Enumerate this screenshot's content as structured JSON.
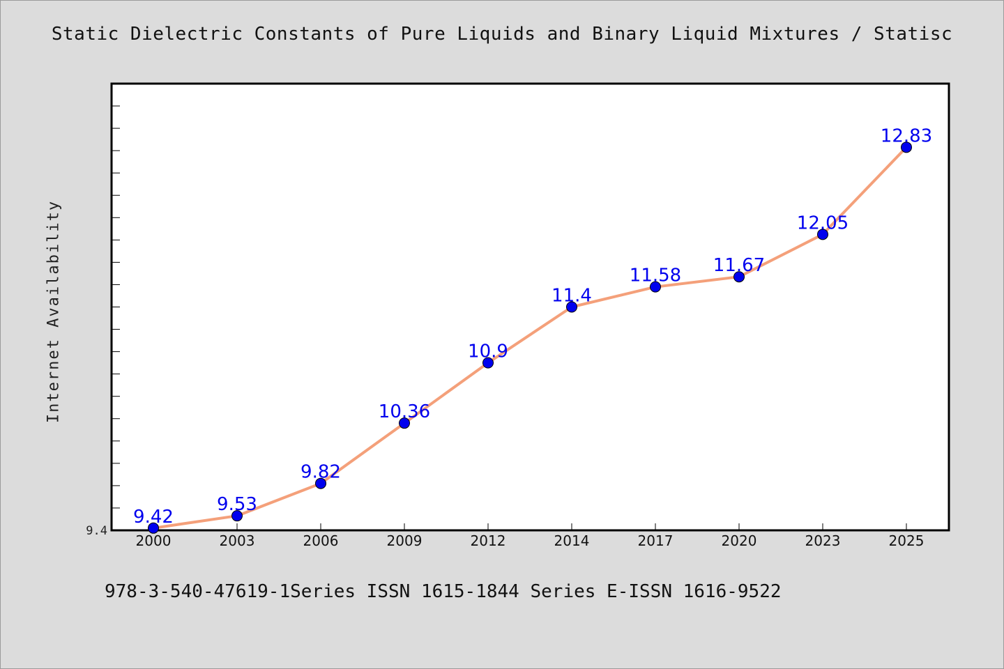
{
  "title": "Static Dielectric Constants of Pure Liquids and Binary Liquid Mixtures / Statisc",
  "footer": "978-3-540-47619-1Series ISSN 1615-1844 Series E-ISSN 1616-9522",
  "colors": {
    "line": "#f4a07a",
    "marker": "#0000ee",
    "label": "#0000ee",
    "background": "#dcdcdc",
    "plot_bg": "#ffffff"
  },
  "chart_data": {
    "type": "line",
    "title": "Static Dielectric Constants of Pure Liquids and Binary Liquid Mixtures / Statisc",
    "xlabel": "",
    "ylabel": "Internet Availability",
    "categories": [
      "2000",
      "2003",
      "2006",
      "2009",
      "2012",
      "2014",
      "2017",
      "2020",
      "2023",
      "2025"
    ],
    "series": [
      {
        "values": [
          9.42,
          9.53,
          9.82,
          10.36,
          10.9,
          11.4,
          11.58,
          11.67,
          12.05,
          12.83
        ]
      }
    ],
    "data_labels": [
      "9.42",
      "9.53",
      "9.82",
      "10.36",
      "10.9",
      "11.4",
      "11.58",
      "11.67",
      "12.05",
      "12.83"
    ],
    "ytick_labels": [
      "9.4"
    ],
    "ylim": [
      9.4,
      13.4
    ],
    "grid": false,
    "legend": "none"
  }
}
